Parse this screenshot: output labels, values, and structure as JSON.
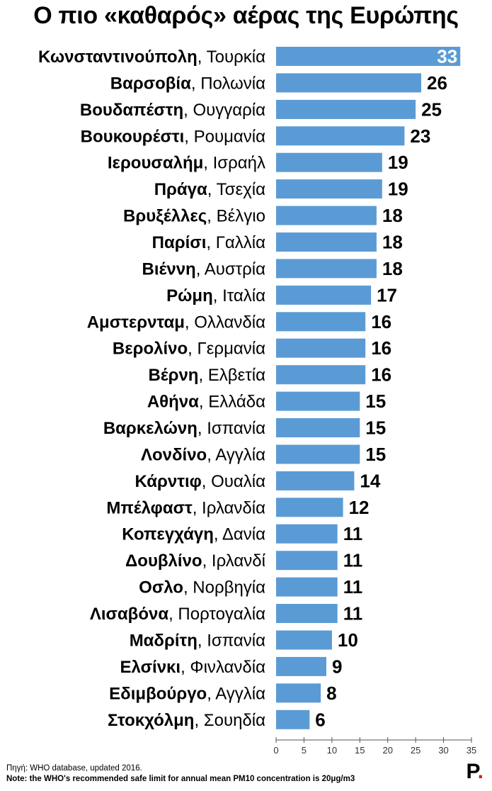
{
  "title": "Ο πιο «καθαρός» αέρας της Ευρώπης",
  "chart_data": {
    "type": "bar",
    "orientation": "horizontal",
    "bar_color": "#5b9bd5",
    "categories": [
      {
        "city": "Κωνσταντινούπολη",
        "country": "Τουρκία"
      },
      {
        "city": "Βαρσοβία",
        "country": "Πολωνία"
      },
      {
        "city": "Βουδαπέστη",
        "country": "Ουγγαρία"
      },
      {
        "city": "Βουκουρέστι",
        "country": "Ρουμανία"
      },
      {
        "city": "Ιερουσαλήμ",
        "country": "Ισραήλ"
      },
      {
        "city": "Πράγα",
        "country": "Τσεχία"
      },
      {
        "city": "Βρυξέλλες",
        "country": "Βέλγιο"
      },
      {
        "city": "Παρίσι",
        "country": "Γαλλία"
      },
      {
        "city": "Βιέννη",
        "country": "Αυστρία"
      },
      {
        "city": "Ρώμη",
        "country": "Ιταλία"
      },
      {
        "city": "Αμστερνταμ",
        "country": "Ολλανδία"
      },
      {
        "city": "Βερολίνο",
        "country": "Γερμανία"
      },
      {
        "city": "Βέρνη",
        "country": "Ελβετία"
      },
      {
        "city": "Αθήνα",
        "country": "Ελλάδα"
      },
      {
        "city": "Βαρκελώνη",
        "country": "Ισπανία"
      },
      {
        "city": "Λονδίνο",
        "country": "Αγγλία"
      },
      {
        "city": "Κάρντιφ",
        "country": "Ουαλία"
      },
      {
        "city": "Μπέλφαστ",
        "country": "Ιρλανδία"
      },
      {
        "city": "Κοπεγχάγη",
        "country": "Δανία"
      },
      {
        "city": "Δουβλίνο",
        "country": "Ιρλανδί"
      },
      {
        "city": "Οσλο",
        "country": "Νορβηγία"
      },
      {
        "city": "Λισαβόνα",
        "country": "Πορτογαλία"
      },
      {
        "city": "Μαδρίτη",
        "country": "Ισπανία"
      },
      {
        "city": "Ελσίνκι",
        "country": "Φινλανδία"
      },
      {
        "city": "Εδιμβούργο",
        "country": "Αγγλία"
      },
      {
        "city": "Στοκχόλμη",
        "country": "Σουηδία"
      }
    ],
    "values": [
      33,
      26,
      25,
      23,
      19,
      19,
      18,
      18,
      18,
      17,
      16,
      16,
      16,
      15,
      15,
      15,
      14,
      12,
      11,
      11,
      11,
      11,
      10,
      9,
      8,
      6
    ],
    "xlim": [
      0,
      35
    ],
    "xticks": [
      0,
      5,
      10,
      15,
      20,
      25,
      30,
      35
    ],
    "grid": false,
    "value_labels": true
  },
  "source": "Πηγή: WHO database, updated 2016.",
  "note": "Note: the WHO's recommended safe limit for annual mean PM10 concentration is 20μg/m3",
  "logo": {
    "letter": "P",
    "dot": "."
  }
}
